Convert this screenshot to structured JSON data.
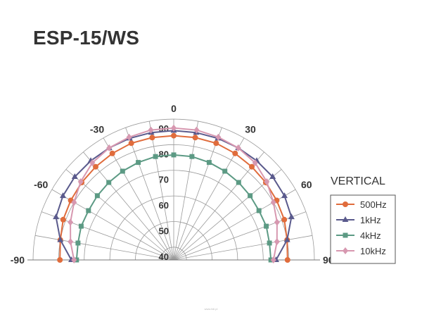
{
  "title": "ESP-15/WS",
  "credit": "www.lidl.pl",
  "chart_data": {
    "type": "polar-line",
    "title": "ESP-15/WS",
    "legend_title": "VERTICAL",
    "legend_position": "right",
    "grid": true,
    "angle_range": [
      -90,
      90
    ],
    "angle_ticks": [
      -90,
      -60,
      -30,
      0,
      30,
      60,
      90
    ],
    "angle_tick_labels": [
      "-90",
      "-60",
      "-30",
      "0",
      "30",
      "60",
      "90"
    ],
    "radial_range": [
      35,
      90
    ],
    "radial_ticks": [
      40,
      50,
      60,
      70,
      80,
      90
    ],
    "radial_tick_labels": [
      "40",
      "50",
      "60",
      "70",
      "80",
      "90"
    ],
    "angles": [
      -90,
      -80,
      -70,
      -60,
      -50,
      -40,
      -30,
      -20,
      -10,
      0,
      10,
      20,
      30,
      40,
      50,
      60,
      70,
      80,
      90
    ],
    "series": [
      {
        "name": "500Hz",
        "color": "#e06c3c",
        "marker": "circle",
        "values": [
          79.5,
          80,
          81,
          81.5,
          82,
          82.5,
          83,
          83.5,
          83.5,
          83.5,
          83.5,
          83.5,
          83,
          82.5,
          82,
          81.5,
          81,
          80,
          79.5
        ]
      },
      {
        "name": "1kHz",
        "color": "#5a5a8c",
        "marker": "triangle",
        "values": [
          75,
          80,
          84,
          85,
          85.5,
          85.5,
          85.5,
          85.5,
          85.5,
          85.5,
          85.5,
          85.5,
          85.5,
          85.5,
          85.5,
          85,
          84,
          80,
          75
        ]
      },
      {
        "name": "4kHz",
        "color": "#5c9a84",
        "marker": "square",
        "values": [
          73,
          73,
          73.5,
          73.5,
          74,
          74.5,
          75,
          75.5,
          76,
          76,
          76,
          75.5,
          75,
          74.5,
          74,
          73.5,
          73.5,
          73,
          73
        ]
      },
      {
        "name": "10kHz",
        "color": "#d798b0",
        "marker": "diamond",
        "values": [
          74,
          76,
          78,
          80,
          82.5,
          84.5,
          85.5,
          86,
          86.5,
          86.5,
          86.5,
          86,
          85.5,
          84.5,
          82.5,
          80,
          78,
          76,
          74
        ]
      }
    ]
  }
}
